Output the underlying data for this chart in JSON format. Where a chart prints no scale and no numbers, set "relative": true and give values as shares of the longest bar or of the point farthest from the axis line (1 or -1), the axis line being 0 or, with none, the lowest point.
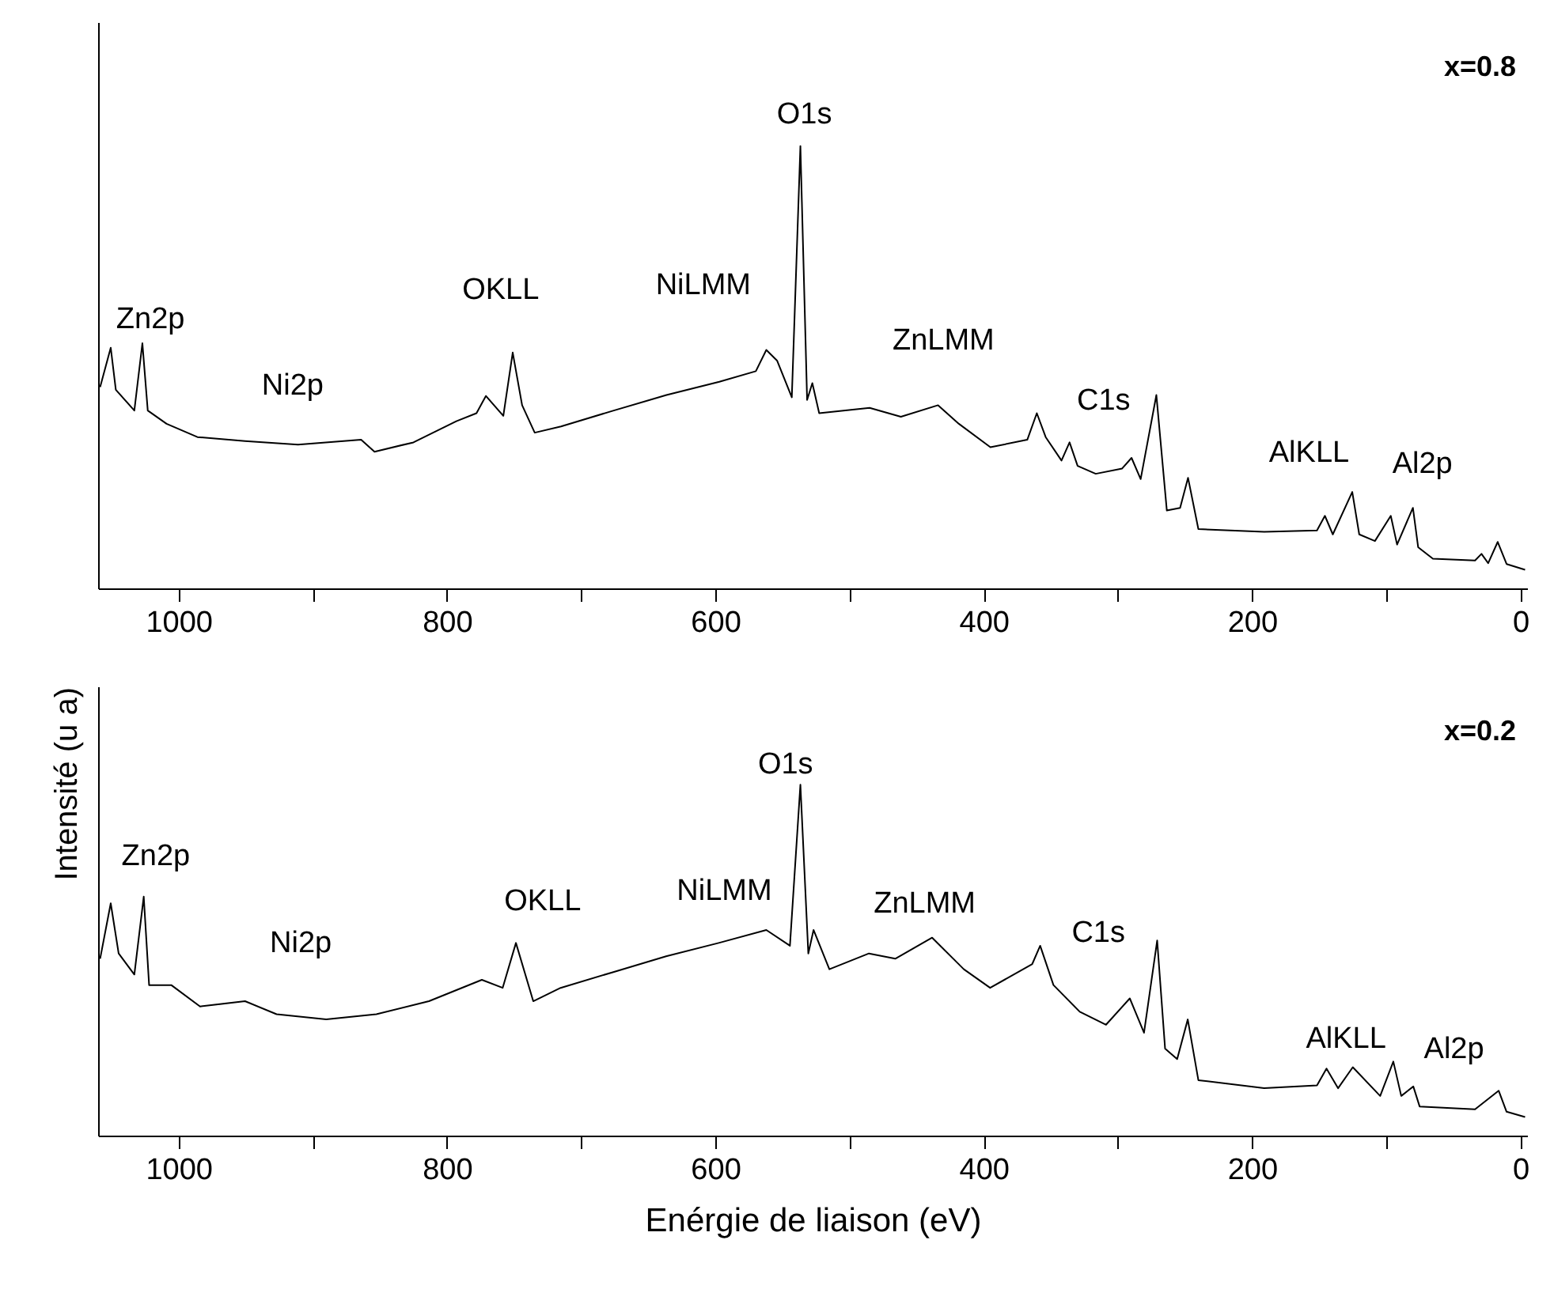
{
  "chart_data": [
    {
      "type": "line",
      "title": "x=0.8",
      "relative": true,
      "color": "#000000",
      "grid": false,
      "line_style": "solid",
      "xlim": [
        1060,
        -5
      ],
      "xticks": [
        1000,
        {
          "value": 900,
          "label": null
        },
        800,
        {
          "value": 700,
          "label": null
        },
        600,
        {
          "value": 500,
          "label": null
        },
        400,
        {
          "value": 300,
          "label": null
        },
        200,
        {
          "value": 100,
          "label": null
        },
        0
      ],
      "x": [
        1058.5,
        1050.6,
        1046.8,
        1033,
        1027,
        1023,
        1009,
        986,
        950.5,
        911,
        864,
        854,
        825,
        793,
        778,
        771,
        758,
        751,
        744,
        734.6,
        715,
        675.7,
        636.4,
        597,
        569.8,
        562,
        554,
        543,
        536.6,
        531.6,
        527.7,
        522.6,
        485,
        461.7,
        434,
        418.5,
        395,
        367.5,
        360.4,
        353.8,
        342,
        336,
        330,
        316.5,
        296.8,
        289.8,
        283,
        271.3,
        263.5,
        253.6,
        247.7,
        240,
        190.9,
        151.6,
        145.7,
        139.8,
        125.3,
        120.1,
        108.4,
        96.6,
        91.9,
        80.1,
        76.2,
        65.2,
        33.8,
        29,
        24,
        16.9,
        10.3,
        -3.5
      ],
      "values": [
        0.455,
        0.544,
        0.449,
        0.402,
        0.554,
        0.402,
        0.372,
        0.342,
        0.333,
        0.325,
        0.336,
        0.309,
        0.33,
        0.378,
        0.396,
        0.435,
        0.39,
        0.533,
        0.414,
        0.352,
        0.366,
        0.402,
        0.437,
        0.467,
        0.491,
        0.539,
        0.515,
        0.432,
        1.0,
        0.426,
        0.464,
        0.396,
        0.408,
        0.388,
        0.414,
        0.372,
        0.319,
        0.336,
        0.396,
        0.342,
        0.289,
        0.33,
        0.277,
        0.259,
        0.271,
        0.295,
        0.247,
        0.437,
        0.176,
        0.182,
        0.25,
        0.134,
        0.128,
        0.131,
        0.164,
        0.122,
        0.218,
        0.122,
        0.107,
        0.164,
        0.099,
        0.182,
        0.093,
        0.067,
        0.063,
        0.078,
        0.057,
        0.105,
        0.055,
        0.042
      ],
      "annotations": [
        "Zn2p",
        "Ni2p",
        "OKLL",
        "NiLMM",
        "O1s",
        "ZnLMM",
        "C1s",
        "AlKLL",
        "Al2p"
      ]
    },
    {
      "type": "line",
      "title": "x=0.2",
      "relative": true,
      "color": "#000000",
      "grid": false,
      "line_style": "solid",
      "xlabel": "Enérgie de liaison (eV)",
      "ylabel": "Intensité (u a)",
      "xlim": [
        1060,
        -5
      ],
      "xticks": [
        1000,
        {
          "value": 900,
          "label": null
        },
        800,
        {
          "value": 700,
          "label": null
        },
        600,
        {
          "value": 500,
          "label": null
        },
        400,
        {
          "value": 300,
          "label": null
        },
        200,
        {
          "value": 100,
          "label": null
        },
        0
      ],
      "x": [
        1058.5,
        1050.6,
        1044.7,
        1033,
        1026,
        1022,
        1005.5,
        984,
        950.5,
        927,
        890,
        852.6,
        813.4,
        774,
        758.5,
        748.6,
        735.7,
        715.3,
        676,
        636.7,
        597.5,
        562,
        544.4,
        536.6,
        530.7,
        526.8,
        515,
        485.5,
        465.9,
        438.4,
        414.8,
        395.2,
        363.8,
        357.9,
        348,
        328.4,
        308.8,
        291.1,
        280.5,
        270.7,
        264.8,
        255.8,
        247.9,
        240,
        191,
        151.6,
        144.5,
        135.9,
        124.9,
        104.5,
        94.7,
        88.8,
        79.8,
        75.1,
        33.8,
        16.2,
        10.3,
        -3.5
      ],
      "values": [
        0.504,
        0.662,
        0.519,
        0.459,
        0.681,
        0.429,
        0.429,
        0.368,
        0.383,
        0.346,
        0.331,
        0.346,
        0.383,
        0.444,
        0.421,
        0.549,
        0.383,
        0.421,
        0.466,
        0.511,
        0.549,
        0.586,
        0.541,
        1.0,
        0.519,
        0.586,
        0.474,
        0.519,
        0.504,
        0.564,
        0.474,
        0.421,
        0.489,
        0.541,
        0.429,
        0.353,
        0.316,
        0.391,
        0.293,
        0.556,
        0.248,
        0.218,
        0.331,
        0.158,
        0.135,
        0.143,
        0.191,
        0.135,
        0.195,
        0.113,
        0.211,
        0.113,
        0.14,
        0.083,
        0.075,
        0.128,
        0.068,
        0.053
      ],
      "annotations": [
        "Zn2p",
        "Ni2p",
        "OKLL",
        "NiLMM",
        "O1s",
        "ZnLMM",
        "C1s",
        "AlKLL",
        "Al2p"
      ]
    }
  ]
}
